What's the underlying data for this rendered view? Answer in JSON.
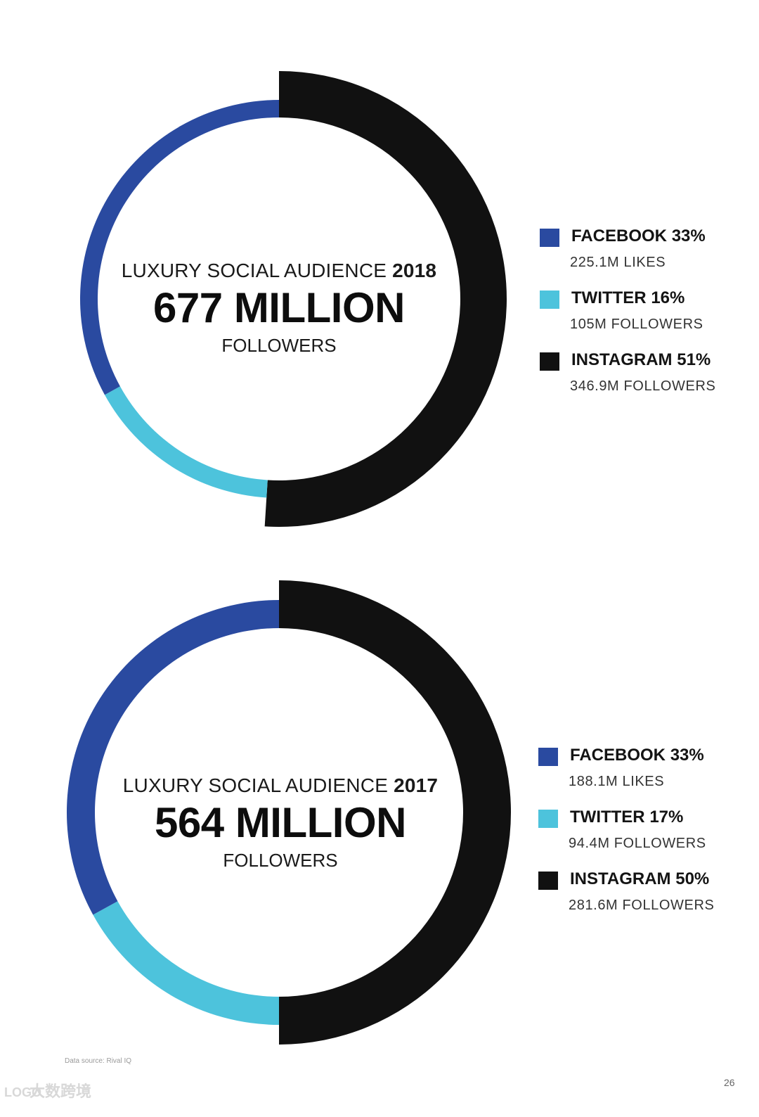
{
  "colors": {
    "facebook": "#2a4aa0",
    "twitter": "#4dc3dc",
    "instagram": "#111111"
  },
  "chart_data": [
    {
      "type": "pie",
      "variant": "donut",
      "title_prefix": "LUXURY SOCIAL AUDIENCE",
      "year": "2018",
      "total_label": "677 MILLION",
      "total_unit": "FOLLOWERS",
      "total_millions": 677,
      "legend_position": "right",
      "series": [
        {
          "name": "FACEBOOK",
          "percent": 33,
          "percent_label": "33%",
          "detail": "225.1M LIKES",
          "value_millions": 225.1,
          "color": "#2a4aa0"
        },
        {
          "name": "TWITTER",
          "percent": 16,
          "percent_label": "16%",
          "detail": "105M FOLLOWERS",
          "value_millions": 105,
          "color": "#4dc3dc"
        },
        {
          "name": "INSTAGRAM",
          "percent": 51,
          "percent_label": "51%",
          "detail": "346.9M FOLLOWERS",
          "value_millions": 346.9,
          "color": "#111111"
        }
      ]
    },
    {
      "type": "pie",
      "variant": "donut",
      "title_prefix": "LUXURY SOCIAL AUDIENCE",
      "year": "2017",
      "total_label": "564 MILLION",
      "total_unit": "FOLLOWERS",
      "total_millions": 564,
      "legend_position": "right",
      "series": [
        {
          "name": "FACEBOOK",
          "percent": 33,
          "percent_label": "33%",
          "detail": "188.1M LIKES",
          "value_millions": 188.1,
          "color": "#2a4aa0"
        },
        {
          "name": "TWITTER",
          "percent": 17,
          "percent_label": "17%",
          "detail": "94.4M FOLLOWERS",
          "value_millions": 94.4,
          "color": "#4dc3dc"
        },
        {
          "name": "INSTAGRAM",
          "percent": 50,
          "percent_label": "50%",
          "detail": "281.6M FOLLOWERS",
          "value_millions": 281.6,
          "color": "#111111"
        }
      ]
    }
  ],
  "footer": {
    "source": "Data source: Rival IQ",
    "page_number": "26",
    "watermark": "大数跨境",
    "watermark_logo": "LOGO"
  }
}
